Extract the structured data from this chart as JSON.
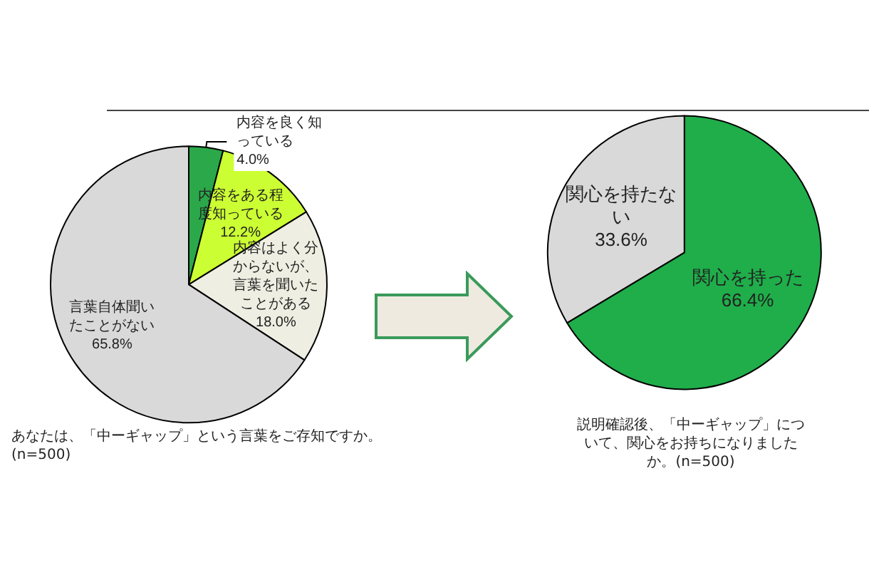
{
  "chart_data": [
    {
      "type": "pie",
      "categories": [
        "内容を良く知っている",
        "内容をある程度知っている",
        "内容はよく分からないが、言葉を聞いたことがある",
        "言葉自体聞いたことがない"
      ],
      "values": [
        4.0,
        12.2,
        18.0,
        65.8
      ],
      "colors": [
        "#2ba84a",
        "#ccff33",
        "#eeeee2",
        "#d9d9d9"
      ],
      "value_labels": [
        "4.0%",
        "12.2%",
        "18.0%",
        "65.8%"
      ],
      "annotations": [
        "あなたは、「中ーギャップ」という言葉をご存知ですか。(n=500)"
      ]
    },
    {
      "type": "pie",
      "categories": [
        "関心を持った",
        "関心を持たない"
      ],
      "values": [
        66.4,
        33.6
      ],
      "colors": [
        "#1fae4a",
        "#d9d9d9"
      ],
      "value_labels": [
        "66.4%",
        "33.6%"
      ],
      "annotations": [
        "説明確認後、「中ーギャップ」について、関心をお持ちになりましたか。(n=500)"
      ]
    }
  ]
}
